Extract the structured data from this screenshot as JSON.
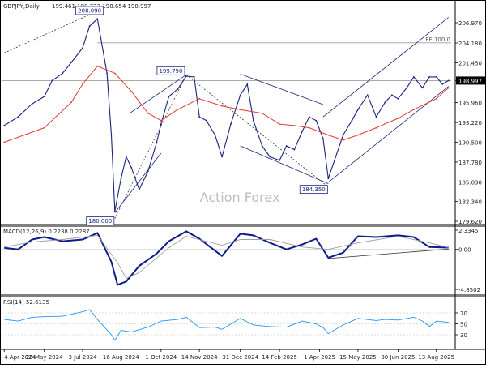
{
  "header": {
    "symbol": "GBPJPY,Daily",
    "ohlc": "199.461 199.773 198.654 198.997",
    "macd": "MACD(12,26,9) 0.2238 0.2287",
    "rsi": "RSI(14) 52.6135"
  },
  "watermark": "Action Forex",
  "colors": {
    "price": "#1a237e",
    "sma": "#e53935",
    "channel": "#1a237e",
    "macd_line": "#0d1b8c",
    "macd_signal": "#9e9e9e",
    "rsi_line": "#2196f3",
    "grid_ref": "#9e9e9e",
    "watermark": "#bdbdbd"
  },
  "chart_data": [
    {
      "type": "line",
      "panel": "price",
      "title": "",
      "xlabel": "",
      "ylabel": "",
      "ylim": [
        179.1,
        209.8
      ],
      "x_ticks": [
        "4 Apr 2024",
        "20 May 2024",
        "3 Jul 2024",
        "16 Aug 2024",
        "1 Oct 2024",
        "14 Nov 2024",
        "31 Dec 2024",
        "14 Feb 2025",
        "1 Apr 2025",
        "15 May 2025",
        "30 Jun 2025",
        "13 Aug 2025"
      ],
      "y_ticks": [
        "206.970",
        "204.180",
        "201.450",
        "198.997",
        "195.960",
        "193.220",
        "190.500",
        "187.780",
        "185.030",
        "182.340",
        "179.620"
      ],
      "series": [
        {
          "role": "price",
          "x": [
            "2024-04-04",
            "2024-04-20",
            "2024-05-06",
            "2024-05-20",
            "2024-05-29",
            "2024-06-10",
            "2024-06-20",
            "2024-07-03",
            "2024-07-11",
            "2024-07-20",
            "2024-07-31",
            "2024-08-05",
            "2024-08-09",
            "2024-08-16",
            "2024-08-22",
            "2024-08-28",
            "2024-09-06",
            "2024-09-16",
            "2024-09-26",
            "2024-10-01",
            "2024-10-10",
            "2024-10-20",
            "2024-10-30",
            "2024-11-08",
            "2024-11-14",
            "2024-11-22",
            "2024-12-02",
            "2024-12-10",
            "2024-12-20",
            "2024-12-31",
            "2025-01-08",
            "2025-01-15",
            "2025-01-25",
            "2025-02-03",
            "2025-02-14",
            "2025-02-22",
            "2025-03-03",
            "2025-03-12",
            "2025-03-20",
            "2025-03-28",
            "2025-04-05",
            "2025-04-11",
            "2025-04-18",
            "2025-04-28",
            "2025-05-08",
            "2025-05-15",
            "2025-05-26",
            "2025-06-05",
            "2025-06-15",
            "2025-06-23",
            "2025-06-30",
            "2025-07-10",
            "2025-07-18",
            "2025-07-28",
            "2025-08-05",
            "2025-08-13",
            "2025-08-20",
            "2025-08-27"
          ],
          "values": [
            192.8,
            194.0,
            195.8,
            196.8,
            199.0,
            200.0,
            201.5,
            203.5,
            206.5,
            207.5,
            200.0,
            191.5,
            181.0,
            185.5,
            188.5,
            187.0,
            184.0,
            186.5,
            190.5,
            193.0,
            196.8,
            197.8,
            199.6,
            199.5,
            194.0,
            193.5,
            191.5,
            188.5,
            193.0,
            197.0,
            198.5,
            193.5,
            190.0,
            188.5,
            188.0,
            190.0,
            189.5,
            192.0,
            194.0,
            193.5,
            191.0,
            185.5,
            188.0,
            191.5,
            193.5,
            195.0,
            197.0,
            194.0,
            196.0,
            197.0,
            196.5,
            198.0,
            199.5,
            198.0,
            199.5,
            199.5,
            198.5,
            199.0
          ]
        },
        {
          "role": "sma",
          "x": [
            "2024-04-04",
            "2024-05-20",
            "2024-06-20",
            "2024-07-03",
            "2024-07-20",
            "2024-08-09",
            "2024-08-28",
            "2024-09-16",
            "2024-10-01",
            "2024-10-20",
            "2024-11-14",
            "2024-12-10",
            "2024-12-31",
            "2025-01-25",
            "2025-02-14",
            "2025-03-03",
            "2025-03-20",
            "2025-04-11",
            "2025-04-28",
            "2025-05-15",
            "2025-06-05",
            "2025-06-30",
            "2025-07-18",
            "2025-08-13",
            "2025-08-27"
          ],
          "values": [
            190.5,
            192.5,
            196.0,
            198.5,
            201.0,
            200.0,
            197.5,
            194.5,
            193.5,
            195.0,
            196.5,
            195.5,
            195.0,
            194.5,
            193.0,
            192.8,
            192.5,
            191.5,
            190.8,
            191.5,
            192.5,
            193.8,
            195.0,
            196.5,
            198.0
          ]
        }
      ],
      "annotations": [
        {
          "label": "208.090",
          "x": "2024-07-11",
          "y": 208.09
        },
        {
          "label": "199.790",
          "x": "2024-10-30",
          "y": 199.79
        },
        {
          "label": "180.000",
          "x": "2024-08-09",
          "y": 180.0
        },
        {
          "label": "184.350",
          "x": "2025-04-11",
          "y": 184.35
        },
        {
          "label": "FE 100.0",
          "x": "2025-08-05",
          "y": 204.2
        }
      ],
      "reference_lines": [
        {
          "name": "FE 100.0",
          "y": 204.2,
          "x_start": "2024-07-20"
        },
        {
          "name": "current",
          "y": 198.997
        }
      ],
      "trend_lines": [
        {
          "x": [
            "2024-04-04",
            "2024-07-11"
          ],
          "y": [
            202.8,
            208.09
          ],
          "style": "dotted"
        },
        {
          "x": [
            "2024-08-09",
            "2024-10-30"
          ],
          "y": [
            180.0,
            199.79
          ],
          "style": "dotted"
        },
        {
          "x": [
            "2024-10-30",
            "2025-04-11"
          ],
          "y": [
            199.79,
            184.35
          ],
          "style": "dotted"
        },
        {
          "x": [
            "2024-08-26",
            "2024-10-30"
          ],
          "y": [
            194.5,
            199.8
          ],
          "style": "solid"
        },
        {
          "x": [
            "2024-08-09",
            "2024-10-01"
          ],
          "y": [
            180.8,
            189.0
          ],
          "style": "solid"
        },
        {
          "x": [
            "2024-12-31",
            "2025-04-05"
          ],
          "y": [
            199.9,
            195.7
          ],
          "style": "solid"
        },
        {
          "x": [
            "2024-12-31",
            "2025-04-11"
          ],
          "y": [
            190.0,
            184.8
          ],
          "style": "solid"
        },
        {
          "x": [
            "2025-04-11",
            "2025-08-27"
          ],
          "y": [
            185.0,
            198.2
          ],
          "style": "solid"
        },
        {
          "x": [
            "2025-04-05",
            "2025-08-27"
          ],
          "y": [
            194.0,
            207.7
          ],
          "style": "solid"
        }
      ]
    },
    {
      "type": "line",
      "panel": "macd",
      "title": "MACD(12,26,9) 0.2238 0.2287",
      "ylim": [
        -5.2,
        3.1
      ],
      "y_ticks": [
        "2.3345",
        "0.00",
        "-4.8502"
      ],
      "series": [
        {
          "role": "macd",
          "x": [
            "2024-04-04",
            "2024-04-20",
            "2024-05-06",
            "2024-05-20",
            "2024-06-10",
            "2024-07-03",
            "2024-07-20",
            "2024-08-05",
            "2024-08-12",
            "2024-08-22",
            "2024-09-06",
            "2024-09-26",
            "2024-10-10",
            "2024-10-30",
            "2024-11-14",
            "2024-12-10",
            "2024-12-31",
            "2025-01-15",
            "2025-02-03",
            "2025-02-22",
            "2025-03-12",
            "2025-03-28",
            "2025-04-11",
            "2025-04-28",
            "2025-05-15",
            "2025-06-05",
            "2025-06-30",
            "2025-07-18",
            "2025-08-05",
            "2025-08-27"
          ],
          "values": [
            0.2,
            0.0,
            1.2,
            1.5,
            1.0,
            1.2,
            2.0,
            -1.5,
            -4.3,
            -3.9,
            -2.0,
            -0.5,
            1.0,
            2.2,
            1.3,
            -0.8,
            1.9,
            1.7,
            0.8,
            0.0,
            0.6,
            1.3,
            -1.0,
            -0.4,
            1.6,
            1.5,
            1.7,
            1.5,
            0.3,
            0.22
          ]
        },
        {
          "role": "signal",
          "x": [
            "2024-04-04",
            "2024-05-06",
            "2024-06-10",
            "2024-07-20",
            "2024-08-12",
            "2024-08-22",
            "2024-09-06",
            "2024-10-10",
            "2024-10-30",
            "2024-12-10",
            "2024-12-31",
            "2025-02-03",
            "2025-03-12",
            "2025-04-11",
            "2025-05-15",
            "2025-06-30",
            "2025-08-05",
            "2025-08-27"
          ],
          "values": [
            0.3,
            0.9,
            1.2,
            1.7,
            -1.6,
            -3.5,
            -2.8,
            0.2,
            1.6,
            0.5,
            1.2,
            1.2,
            0.3,
            0.0,
            0.8,
            1.6,
            0.8,
            0.23
          ]
        }
      ],
      "trend_lines": [
        {
          "x": [
            "2025-04-11",
            "2025-08-27"
          ],
          "y": [
            -1.1,
            0.05
          ],
          "style": "solid"
        }
      ]
    },
    {
      "type": "line",
      "panel": "rsi",
      "title": "RSI(14) 52.6135",
      "ylim": [
        15,
        85
      ],
      "y_ticks": [
        "70",
        "50",
        "30"
      ],
      "series": [
        {
          "role": "rsi",
          "x": [
            "2024-04-04",
            "2024-04-20",
            "2024-05-06",
            "2024-05-20",
            "2024-06-10",
            "2024-07-03",
            "2024-07-11",
            "2024-07-20",
            "2024-08-05",
            "2024-08-09",
            "2024-08-16",
            "2024-08-28",
            "2024-09-16",
            "2024-10-01",
            "2024-10-20",
            "2024-10-30",
            "2024-11-14",
            "2024-12-02",
            "2024-12-10",
            "2024-12-31",
            "2025-01-15",
            "2025-02-03",
            "2025-02-22",
            "2025-03-12",
            "2025-03-28",
            "2025-04-05",
            "2025-04-11",
            "2025-04-28",
            "2025-05-15",
            "2025-06-05",
            "2025-06-15",
            "2025-06-30",
            "2025-07-18",
            "2025-07-28",
            "2025-08-05",
            "2025-08-13",
            "2025-08-27"
          ],
          "values": [
            58,
            55,
            62,
            63,
            64,
            72,
            76,
            58,
            30,
            20,
            38,
            35,
            44,
            55,
            58,
            62,
            43,
            44,
            40,
            60,
            48,
            45,
            44,
            55,
            50,
            43,
            32,
            48,
            60,
            56,
            58,
            57,
            62,
            55,
            45,
            55,
            52.6
          ]
        }
      ]
    }
  ]
}
